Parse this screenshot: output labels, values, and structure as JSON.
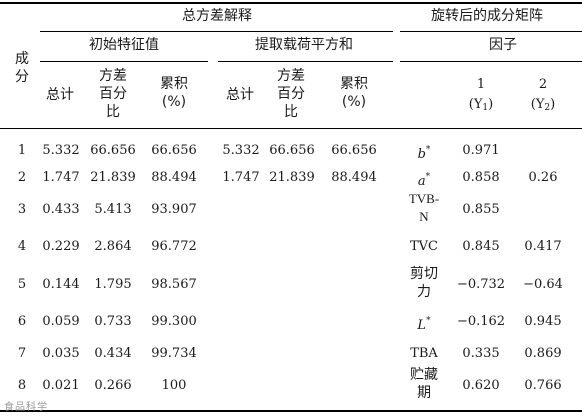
{
  "header": {
    "component_col": "成分",
    "total_variance": "总方差解释",
    "rotated_matrix": "旋转后的成分矩阵",
    "initial_eigenvalues": "初始特征值",
    "extraction_sums": "提取载荷平方和",
    "factor": "因子",
    "total": "总计",
    "variance_pct": "方差百分比",
    "cumulative": "累积(%)",
    "factor1_num": "1",
    "factor1_label": "(Y1)",
    "factor2_num": "2",
    "factor2_label": "(Y2)"
  },
  "rows": [
    {
      "component": "1",
      "init_total": "5.332",
      "init_var": "66.656",
      "init_cum": "66.656",
      "ext_total": "5.332",
      "ext_var": "66.656",
      "ext_cum": "66.656",
      "indicator": "b*",
      "y1": "0.971",
      "y2": ""
    },
    {
      "component": "2",
      "init_total": "1.747",
      "init_var": "21.839",
      "init_cum": "88.494",
      "ext_total": "1.747",
      "ext_var": "21.839",
      "ext_cum": "88.494",
      "indicator": "a*",
      "y1": "0.858",
      "y2": "0.26"
    },
    {
      "component": "3",
      "init_total": "0.433",
      "init_var": "5.413",
      "init_cum": "93.907",
      "ext_total": "",
      "ext_var": "",
      "ext_cum": "",
      "indicator": "TVB-N",
      "y1": "0.855",
      "y2": ""
    },
    {
      "component": "4",
      "init_total": "0.229",
      "init_var": "2.864",
      "init_cum": "96.772",
      "ext_total": "",
      "ext_var": "",
      "ext_cum": "",
      "indicator": "TVC",
      "y1": "0.845",
      "y2": "0.417"
    },
    {
      "component": "5",
      "init_total": "0.144",
      "init_var": "1.795",
      "init_cum": "98.567",
      "ext_total": "",
      "ext_var": "",
      "ext_cum": "",
      "indicator": "剪切力",
      "y1": "−0.732",
      "y2": "−0.64"
    },
    {
      "component": "6",
      "init_total": "0.059",
      "init_var": "0.733",
      "init_cum": "99.300",
      "ext_total": "",
      "ext_var": "",
      "ext_cum": "",
      "indicator": "L*",
      "y1": "−0.162",
      "y2": "0.945"
    },
    {
      "component": "7",
      "init_total": "0.035",
      "init_var": "0.434",
      "init_cum": "99.734",
      "ext_total": "",
      "ext_var": "",
      "ext_cum": "",
      "indicator": "TBA",
      "y1": "0.335",
      "y2": "0.869"
    },
    {
      "component": "8",
      "init_total": "0.021",
      "init_var": "0.266",
      "init_cum": "100",
      "ext_total": "",
      "ext_var": "",
      "ext_cum": "",
      "indicator": "贮藏期",
      "y1": "0.620",
      "y2": "0.766"
    }
  ],
  "watermark": "食品科学"
}
